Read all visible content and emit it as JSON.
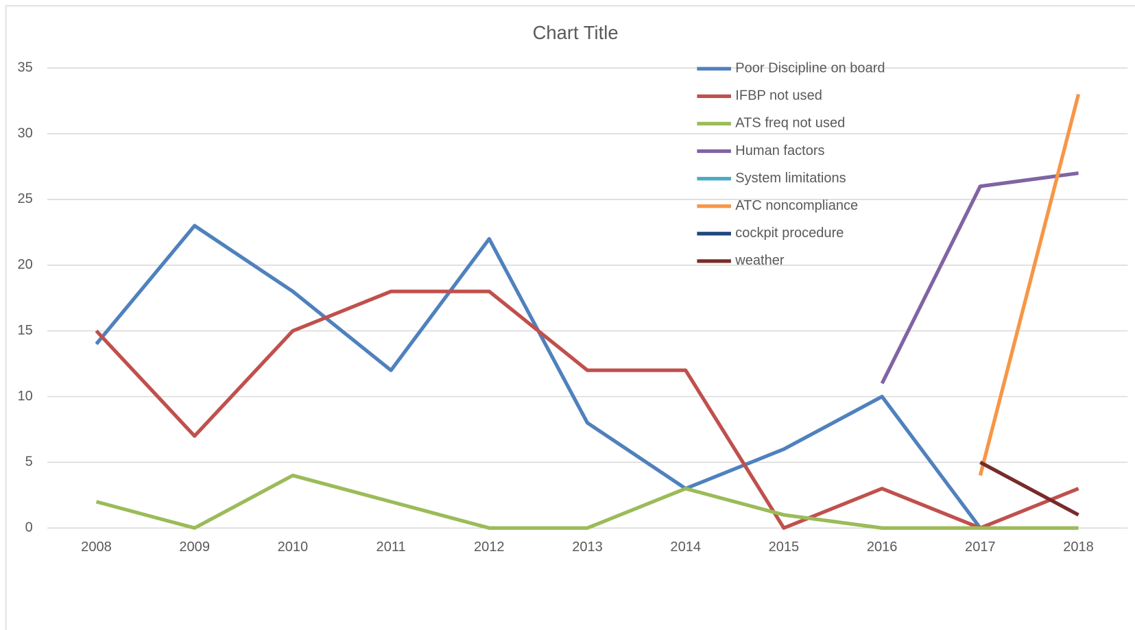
{
  "chart_data": {
    "type": "line",
    "title": "Chart Title",
    "categories": [
      "2008",
      "2009",
      "2010",
      "2011",
      "2012",
      "2013",
      "2014",
      "2015",
      "2016",
      "2017",
      "2018"
    ],
    "series": [
      {
        "name": "Poor Discipline on board",
        "color": "#4F81BD",
        "values": [
          14,
          23,
          18,
          12,
          22,
          8,
          3,
          6,
          10,
          0,
          null
        ]
      },
      {
        "name": "IFBP not used",
        "color": "#C0504D",
        "values": [
          15,
          7,
          15,
          18,
          18,
          12,
          12,
          0,
          3,
          0,
          3
        ]
      },
      {
        "name": "ATS freq not used",
        "color": "#9BBB59",
        "values": [
          2,
          0,
          4,
          2,
          0,
          0,
          3,
          1,
          0,
          0,
          0
        ]
      },
      {
        "name": "Human factors",
        "color": "#8064A2",
        "values": [
          null,
          null,
          null,
          null,
          null,
          null,
          null,
          null,
          11,
          26,
          27
        ]
      },
      {
        "name": "System limitations",
        "color": "#4BACC6",
        "values": [
          null,
          null,
          null,
          null,
          null,
          null,
          null,
          null,
          null,
          null,
          null
        ]
      },
      {
        "name": "ATC noncompliance",
        "color": "#F79646",
        "values": [
          null,
          null,
          null,
          null,
          null,
          null,
          null,
          null,
          null,
          4,
          33
        ]
      },
      {
        "name": "cockpit procedure",
        "color": "#1F497D",
        "values": [
          null,
          null,
          null,
          null,
          null,
          null,
          null,
          null,
          null,
          null,
          null
        ]
      },
      {
        "name": "weather",
        "color": "#772C2A",
        "values": [
          null,
          null,
          null,
          null,
          null,
          null,
          null,
          null,
          null,
          5,
          1
        ]
      }
    ],
    "ylim": [
      0,
      35
    ],
    "yticks": [
      0,
      5,
      10,
      15,
      20,
      25,
      30,
      35
    ],
    "grid": true,
    "legend": "top-right"
  }
}
